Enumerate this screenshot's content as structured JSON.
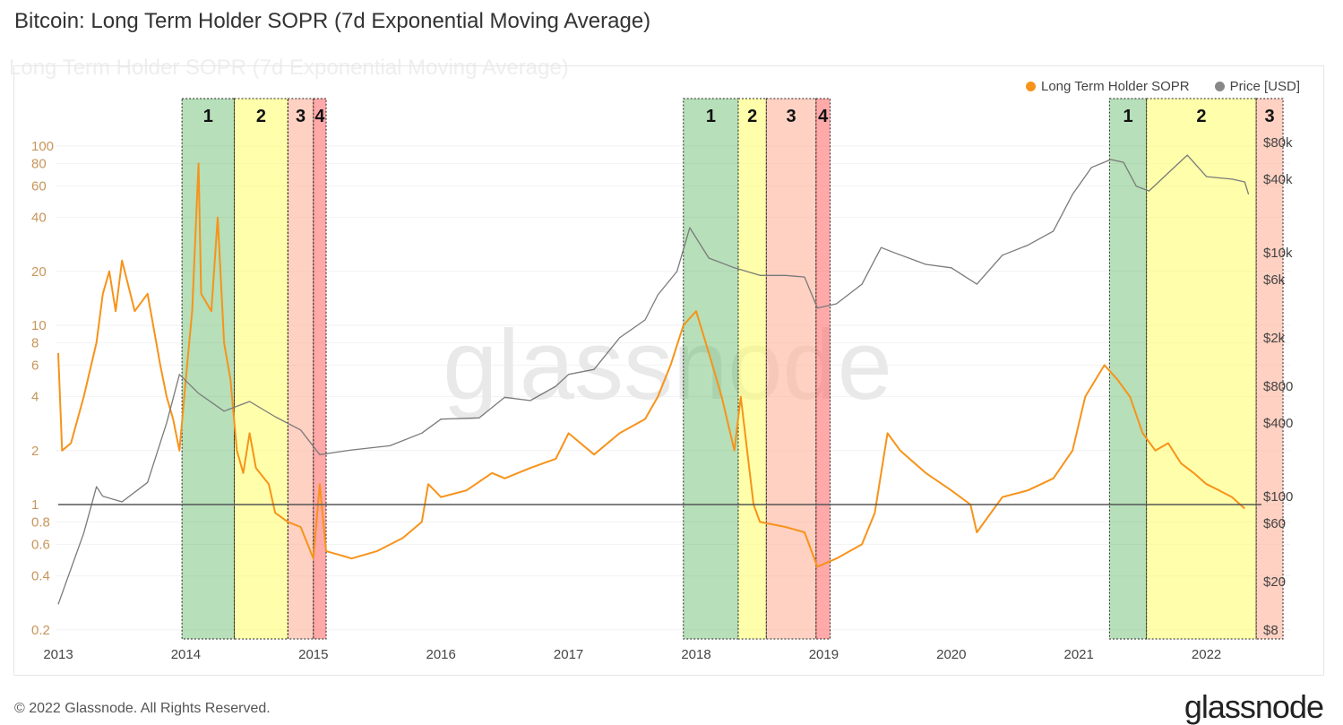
{
  "title": "Bitcoin: Long Term Holder SOPR (7d Exponential Moving Average)",
  "ghost_title": "Long Term Holder SOPR (7d Exponential Moving Average)",
  "watermark": "glassnode",
  "footer": "© 2022 Glassnode. All Rights Reserved.",
  "brand": "glassnode",
  "colors": {
    "sopr": "#f7931a",
    "price": "#7a7a7a",
    "phase1": "#4caf50",
    "phase2": "#ffff66",
    "phase3": "#ffb39a",
    "phase4": "#ff7070"
  },
  "chart_data": {
    "type": "line",
    "title": "Long Term Holder SOPR (7d Exponential Moving Average)",
    "legend": [
      "Long Term Holder SOPR",
      "Price [USD]"
    ],
    "legend_position": "top-right",
    "x_ticks": [
      "2013",
      "2014",
      "2015",
      "2016",
      "2017",
      "2018",
      "2019",
      "2020",
      "2021",
      "2022"
    ],
    "xlim": [
      2013,
      2022.65
    ],
    "y_left": {
      "scale": "log",
      "ylim": [
        0.2,
        100
      ],
      "ticks": [
        "0.2",
        "0.4",
        "0.6",
        "0.8",
        "1",
        "2",
        "4",
        "6",
        "8",
        "10",
        "20",
        "40",
        "60",
        "80",
        "100"
      ],
      "tick_values": [
        0.2,
        0.4,
        0.6,
        0.8,
        1,
        2,
        4,
        6,
        8,
        10,
        20,
        40,
        60,
        80,
        100
      ]
    },
    "y_right": {
      "scale": "log",
      "ylim": [
        8,
        80000
      ],
      "ticks": [
        "$8",
        "$20",
        "$60",
        "$100",
        "$400",
        "$800",
        "$2k",
        "$6k",
        "$10k",
        "$40k",
        "$80k"
      ],
      "tick_values": [
        8,
        20,
        60,
        100,
        400,
        800,
        2000,
        6000,
        10000,
        40000,
        80000
      ]
    },
    "reference_line": 1,
    "phases": [
      {
        "label": "1",
        "phase": 1,
        "start": 2013.97,
        "end": 2014.38
      },
      {
        "label": "2",
        "phase": 2,
        "start": 2014.38,
        "end": 2014.8
      },
      {
        "label": "3",
        "phase": 3,
        "start": 2014.8,
        "end": 2015.0
      },
      {
        "label": "4",
        "phase": 4,
        "start": 2015.0,
        "end": 2015.1
      },
      {
        "label": "1",
        "phase": 1,
        "start": 2017.9,
        "end": 2018.33
      },
      {
        "label": "2",
        "phase": 2,
        "start": 2018.33,
        "end": 2018.55
      },
      {
        "label": "3",
        "phase": 3,
        "start": 2018.55,
        "end": 2018.94
      },
      {
        "label": "4",
        "phase": 4,
        "start": 2018.94,
        "end": 2019.05
      },
      {
        "label": "1",
        "phase": 1,
        "start": 2021.24,
        "end": 2021.53
      },
      {
        "label": "2",
        "phase": 2,
        "start": 2021.53,
        "end": 2022.39
      },
      {
        "label": "3",
        "phase": 3,
        "start": 2022.39,
        "end": 2022.6
      }
    ],
    "series": [
      {
        "name": "Long Term Holder SOPR",
        "axis": "left",
        "x": [
          2013.0,
          2013.03,
          2013.1,
          2013.2,
          2013.3,
          2013.35,
          2013.4,
          2013.45,
          2013.5,
          2013.6,
          2013.7,
          2013.8,
          2013.85,
          2013.9,
          2013.95,
          2014.0,
          2014.05,
          2014.1,
          2014.12,
          2014.2,
          2014.25,
          2014.3,
          2014.35,
          2014.4,
          2014.45,
          2014.5,
          2014.55,
          2014.65,
          2014.7,
          2014.8,
          2014.9,
          2015.0,
          2015.05,
          2015.1,
          2015.3,
          2015.5,
          2015.7,
          2015.85,
          2015.9,
          2016.0,
          2016.2,
          2016.4,
          2016.5,
          2016.7,
          2016.9,
          2017.0,
          2017.2,
          2017.4,
          2017.6,
          2017.7,
          2017.8,
          2017.9,
          2018.0,
          2018.1,
          2018.2,
          2018.3,
          2018.35,
          2018.45,
          2018.5,
          2018.7,
          2018.85,
          2018.95,
          2019.1,
          2019.3,
          2019.4,
          2019.5,
          2019.6,
          2019.8,
          2020.0,
          2020.15,
          2020.2,
          2020.4,
          2020.6,
          2020.8,
          2020.95,
          2021.05,
          2021.2,
          2021.3,
          2021.4,
          2021.5,
          2021.6,
          2021.7,
          2021.8,
          2021.9,
          2022.0,
          2022.1,
          2022.2,
          2022.3
        ],
        "values": [
          7,
          2,
          2.2,
          4,
          8,
          15,
          20,
          12,
          23,
          12,
          15,
          6,
          4,
          3,
          2,
          5,
          12,
          80,
          15,
          12,
          40,
          8,
          5,
          2,
          1.5,
          2.5,
          1.6,
          1.3,
          0.9,
          0.8,
          0.75,
          0.5,
          1.3,
          0.55,
          0.5,
          0.55,
          0.65,
          0.8,
          1.3,
          1.1,
          1.2,
          1.5,
          1.4,
          1.6,
          1.8,
          2.5,
          1.9,
          2.5,
          3,
          4,
          6,
          10,
          12,
          7,
          4,
          2,
          4,
          1,
          0.8,
          0.75,
          0.7,
          0.45,
          0.5,
          0.6,
          0.9,
          2.5,
          2,
          1.5,
          1.2,
          1.0,
          0.7,
          1.1,
          1.2,
          1.4,
          2,
          4,
          6,
          5,
          4,
          2.5,
          2,
          2.2,
          1.7,
          1.5,
          1.3,
          1.2,
          1.1,
          0.95
        ]
      },
      {
        "name": "Price [USD]",
        "axis": "right",
        "x": [
          2013.0,
          2013.2,
          2013.3,
          2013.35,
          2013.5,
          2013.7,
          2013.85,
          2013.95,
          2014.1,
          2014.3,
          2014.5,
          2014.7,
          2014.9,
          2015.05,
          2015.3,
          2015.6,
          2015.85,
          2016.0,
          2016.3,
          2016.5,
          2016.7,
          2016.9,
          2017.0,
          2017.2,
          2017.4,
          2017.6,
          2017.7,
          2017.85,
          2017.95,
          2018.1,
          2018.3,
          2018.5,
          2018.7,
          2018.85,
          2018.95,
          2019.1,
          2019.3,
          2019.45,
          2019.55,
          2019.8,
          2020.0,
          2020.2,
          2020.4,
          2020.6,
          2020.8,
          2020.95,
          2021.1,
          2021.25,
          2021.35,
          2021.45,
          2021.55,
          2021.7,
          2021.85,
          2022.0,
          2022.2,
          2022.3,
          2022.33
        ],
        "values": [
          13,
          50,
          120,
          100,
          90,
          130,
          400,
          1000,
          700,
          500,
          600,
          450,
          350,
          220,
          240,
          260,
          330,
          430,
          440,
          650,
          610,
          800,
          1000,
          1100,
          2000,
          2800,
          4500,
          7000,
          16000,
          9000,
          7500,
          6500,
          6500,
          6300,
          3500,
          3800,
          5500,
          11000,
          10000,
          8000,
          7500,
          5500,
          9500,
          11500,
          15000,
          30000,
          50000,
          58000,
          55000,
          35000,
          32000,
          45000,
          63000,
          42000,
          40000,
          38000,
          30000
        ]
      }
    ]
  }
}
